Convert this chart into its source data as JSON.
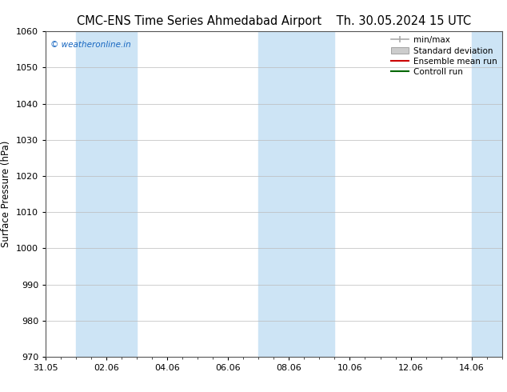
{
  "title_left": "CMC-ENS Time Series Ahmedabad Airport",
  "title_right": "Th. 30.05.2024 15 UTC",
  "ylabel": "Surface Pressure (hPa)",
  "ylim": [
    970,
    1060
  ],
  "yticks": [
    970,
    980,
    990,
    1000,
    1010,
    1020,
    1030,
    1040,
    1050,
    1060
  ],
  "xlim_start": 0,
  "xlim_end": 15,
  "xtick_labels": [
    "31.05",
    "02.06",
    "04.06",
    "06.06",
    "08.06",
    "10.06",
    "12.06",
    "14.06"
  ],
  "xtick_positions": [
    0,
    2,
    4,
    6,
    8,
    10,
    12,
    14
  ],
  "shade_bands": [
    {
      "x_start": 1.0,
      "x_end": 3.0
    },
    {
      "x_start": 7.0,
      "x_end": 9.5
    },
    {
      "x_start": 14.0,
      "x_end": 15.0
    }
  ],
  "shade_color": "#cde4f5",
  "watermark": "© weatheronline.in",
  "watermark_color": "#1565c0",
  "legend_items": [
    {
      "label": "min/max",
      "color": "#aaaaaa",
      "type": "errorbar"
    },
    {
      "label": "Standard deviation",
      "color": "#cccccc",
      "type": "band"
    },
    {
      "label": "Ensemble mean run",
      "color": "#cc0000",
      "type": "line"
    },
    {
      "label": "Controll run",
      "color": "#006600",
      "type": "line"
    }
  ],
  "bg_color": "#ffffff",
  "plot_bg_color": "#ffffff",
  "grid_color": "#bbbbbb",
  "title_fontsize": 10.5,
  "tick_fontsize": 8,
  "ylabel_fontsize": 8.5,
  "legend_fontsize": 7.5
}
